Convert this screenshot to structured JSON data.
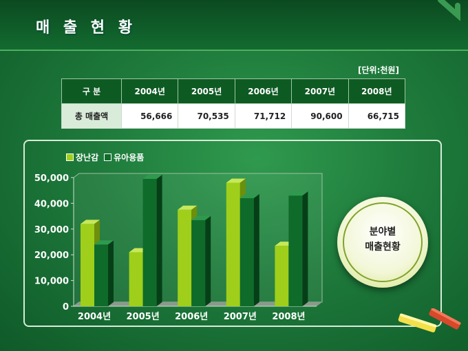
{
  "page": {
    "title": "매 출 현 황"
  },
  "table": {
    "unit_label": "[단위:천원]",
    "headers": [
      "구  분",
      "2004년",
      "2005년",
      "2006년",
      "2007년",
      "2008년"
    ],
    "row_label": "총 매출액",
    "values": [
      "56,666",
      "70,535",
      "71,712",
      "90,600",
      "66,715"
    ]
  },
  "badge": {
    "line1": "분야별",
    "line2": "매출현황"
  },
  "colors": {
    "series1": "#9fcf1a",
    "series2": "#0f6b2a",
    "header_bg": "#0e5a23"
  },
  "chart_data": {
    "type": "bar",
    "categories": [
      "2004년",
      "2005년",
      "2006년",
      "2007년",
      "2008년"
    ],
    "series": [
      {
        "name": "장난감",
        "values": [
          32000,
          21000,
          37500,
          48000,
          23500
        ]
      },
      {
        "name": "유아용품",
        "values": [
          24000,
          49500,
          33500,
          42000,
          43000
        ]
      }
    ],
    "y_ticks": [
      "0",
      "10,000",
      "20,000",
      "30,000",
      "40,000",
      "50,000"
    ],
    "ylim": [
      0,
      50000
    ],
    "legend": "top-left",
    "grid": false
  }
}
